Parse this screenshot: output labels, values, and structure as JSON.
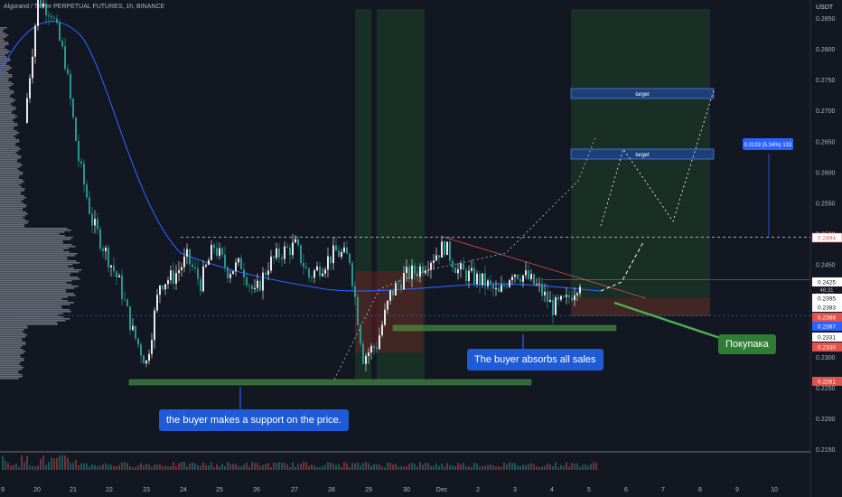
{
  "header": {
    "symbol_line": "Algorand / Tether PERPETUAL FUTURES, 1h, BINANCE"
  },
  "price_axis": {
    "currency": "USDT",
    "ticks": [
      "0.2850",
      "0.2800",
      "0.2750",
      "0.2700",
      "0.2650",
      "0.2600",
      "0.2550",
      "0.2500",
      "0.2450",
      "0.2400",
      "0.2350",
      "0.2300",
      "0.2250",
      "0.2200",
      "0.2150"
    ]
  },
  "price_badges": [
    {
      "value": "0.2494",
      "bg": "#ffffff",
      "fg": "#e0524c",
      "border": "#e0524c"
    },
    {
      "value": "0.2425",
      "bg": "#ffffff",
      "fg": "#131722",
      "sub": "46:31"
    },
    {
      "value": "0.2395",
      "bg": "#ffffff",
      "fg": "#131722"
    },
    {
      "value": "0.2383",
      "bg": "#ffffff",
      "fg": "#131722"
    },
    {
      "value": "0.2368",
      "bg": "#e0524c",
      "fg": "#ffffff"
    },
    {
      "value": "0.2367",
      "bg": "#2962ff",
      "fg": "#ffffff"
    },
    {
      "value": "0.2331",
      "bg": "#ffffff",
      "fg": "#131722"
    },
    {
      "value": "0.2330",
      "bg": "#e0524c",
      "fg": "#ffffff"
    },
    {
      "value": "0.2261",
      "bg": "#e0524c",
      "fg": "#ffffff"
    }
  ],
  "time_axis": {
    "ticks": [
      "9",
      "20",
      "21",
      "22",
      "23",
      "24",
      "25",
      "26",
      "27",
      "28",
      "29",
      "30",
      "Dec",
      "2",
      "3",
      "4",
      "5",
      "6",
      "7",
      "8",
      "9",
      "10"
    ]
  },
  "annotations": {
    "target1": "target",
    "target2": "target",
    "measure": "0.0133 (5.34%) 133",
    "support_note": "the buyer makes a support on the price.",
    "absorb_note": "The buyer absorbs all sales",
    "buy_note": "Покупака"
  },
  "colors": {
    "background": "#131722",
    "bull": "#ffffff",
    "bear": "#26a69a",
    "ma": "#2962ff",
    "support_zone": "#4caf50",
    "target_box": "#2a5cb8"
  },
  "chart_data": {
    "type": "candlestick",
    "title": "",
    "ylim": [
      0.215,
      0.29
    ],
    "series": [
      {
        "name": "price",
        "points": [
          [
            0,
            0.268
          ],
          [
            1,
            0.288
          ],
          [
            2,
            0.286
          ],
          [
            3,
            0.278
          ],
          [
            4,
            0.262
          ],
          [
            5,
            0.252
          ],
          [
            6,
            0.247
          ],
          [
            7,
            0.242
          ],
          [
            8,
            0.234
          ],
          [
            9,
            0.229
          ],
          [
            10,
            0.242
          ],
          [
            11,
            0.243
          ],
          [
            12,
            0.246
          ],
          [
            13,
            0.242
          ],
          [
            14,
            0.248
          ],
          [
            15,
            0.244
          ],
          [
            16,
            0.245
          ],
          [
            17,
            0.24
          ],
          [
            18,
            0.245
          ],
          [
            19,
            0.247
          ],
          [
            20,
            0.248
          ],
          [
            21,
            0.243
          ],
          [
            22,
            0.245
          ],
          [
            23,
            0.247
          ],
          [
            24,
            0.246
          ],
          [
            25,
            0.23
          ],
          [
            26,
            0.232
          ],
          [
            27,
            0.24
          ],
          [
            28,
            0.243
          ],
          [
            29,
            0.244
          ],
          [
            30,
            0.246
          ],
          [
            31,
            0.248
          ],
          [
            32,
            0.244
          ],
          [
            33,
            0.243
          ],
          [
            34,
            0.242
          ],
          [
            35,
            0.24
          ],
          [
            36,
            0.244
          ],
          [
            37,
            0.243
          ],
          [
            38,
            0.241
          ],
          [
            39,
            0.238
          ],
          [
            40,
            0.239
          ],
          [
            41,
            0.2425
          ]
        ]
      }
    ],
    "levels": [
      0.2494,
      0.2383,
      0.2367
    ],
    "targets": [
      0.2637,
      0.2733
    ],
    "support_zones": [
      "0.2255",
      "0.2345"
    ]
  }
}
